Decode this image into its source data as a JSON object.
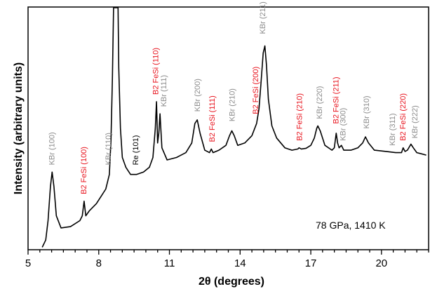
{
  "chart_data": {
    "type": "line",
    "xlabel": "2θ (degrees)",
    "ylabel": "Intensity (arbitrary units)",
    "xlim": [
      5,
      22
    ],
    "ylim": [
      0,
      100
    ],
    "x_ticks": [
      "5",
      "8",
      "11",
      "14",
      "17",
      "20"
    ],
    "annotation": "78 GPa, 1410 K",
    "colors": {
      "line": "#000000",
      "kbr": "#8c8c8c",
      "fesi": "#e8141e",
      "re": "#000000"
    },
    "series": [
      {
        "points": [
          [
            5.6,
            1
          ],
          [
            5.75,
            4
          ],
          [
            5.85,
            12
          ],
          [
            5.95,
            26
          ],
          [
            6.02,
            32
          ],
          [
            6.1,
            26
          ],
          [
            6.2,
            14
          ],
          [
            6.4,
            9
          ],
          [
            6.8,
            9.5
          ],
          [
            7.2,
            12
          ],
          [
            7.3,
            14
          ],
          [
            7.38,
            20
          ],
          [
            7.45,
            14
          ],
          [
            7.6,
            16
          ],
          [
            7.9,
            19
          ],
          [
            8.1,
            22
          ],
          [
            8.3,
            25
          ],
          [
            8.45,
            31
          ],
          [
            8.52,
            45
          ],
          [
            8.58,
            70
          ],
          [
            8.63,
            100
          ],
          [
            8.82,
            100
          ],
          [
            8.85,
            75
          ],
          [
            8.92,
            50
          ],
          [
            9.0,
            38
          ],
          [
            9.15,
            34
          ],
          [
            9.35,
            31
          ],
          [
            9.6,
            31
          ],
          [
            9.9,
            32
          ],
          [
            10.15,
            34
          ],
          [
            10.3,
            38
          ],
          [
            10.4,
            50
          ],
          [
            10.45,
            61
          ],
          [
            10.5,
            44
          ],
          [
            10.55,
            48
          ],
          [
            10.6,
            56
          ],
          [
            10.68,
            42
          ],
          [
            10.9,
            37
          ],
          [
            11.3,
            38
          ],
          [
            11.7,
            40
          ],
          [
            11.95,
            44
          ],
          [
            12.08,
            52
          ],
          [
            12.18,
            53.5
          ],
          [
            12.3,
            48
          ],
          [
            12.5,
            41
          ],
          [
            12.7,
            40
          ],
          [
            12.78,
            41.5
          ],
          [
            12.85,
            40
          ],
          [
            13.1,
            41
          ],
          [
            13.4,
            43
          ],
          [
            13.55,
            47
          ],
          [
            13.65,
            49
          ],
          [
            13.75,
            47
          ],
          [
            13.9,
            43
          ],
          [
            14.2,
            44
          ],
          [
            14.5,
            47
          ],
          [
            14.7,
            52
          ],
          [
            14.8,
            58
          ],
          [
            14.88,
            68
          ],
          [
            14.98,
            81
          ],
          [
            15.05,
            84
          ],
          [
            15.12,
            76
          ],
          [
            15.2,
            62
          ],
          [
            15.35,
            51
          ],
          [
            15.55,
            46
          ],
          [
            15.9,
            42
          ],
          [
            16.2,
            41
          ],
          [
            16.45,
            41.5
          ],
          [
            16.5,
            42
          ],
          [
            16.6,
            41.5
          ],
          [
            16.8,
            41.8
          ],
          [
            17.0,
            43
          ],
          [
            17.15,
            46
          ],
          [
            17.25,
            50
          ],
          [
            17.3,
            51
          ],
          [
            17.4,
            49
          ],
          [
            17.6,
            43
          ],
          [
            17.9,
            41
          ],
          [
            18.0,
            42
          ],
          [
            18.08,
            48
          ],
          [
            18.14,
            44
          ],
          [
            18.2,
            42
          ],
          [
            18.3,
            43
          ],
          [
            18.4,
            41
          ],
          [
            18.7,
            41
          ],
          [
            19.0,
            42
          ],
          [
            19.2,
            44
          ],
          [
            19.32,
            46.5
          ],
          [
            19.45,
            44
          ],
          [
            19.7,
            41
          ],
          [
            20.2,
            40.5
          ],
          [
            20.6,
            40
          ],
          [
            20.85,
            40
          ],
          [
            20.92,
            42
          ],
          [
            21.0,
            40.5
          ],
          [
            21.1,
            41
          ],
          [
            21.25,
            43.5
          ],
          [
            21.35,
            42
          ],
          [
            21.5,
            40
          ],
          [
            21.7,
            39.5
          ],
          [
            21.9,
            39
          ]
        ]
      }
    ],
    "peak_labels": [
      {
        "text": "KBr (100)",
        "x": 6.0,
        "y": 34,
        "kind": "kbr"
      },
      {
        "text": "B2 FeSi (100)",
        "x": 7.35,
        "y": 22,
        "kind": "fesi"
      },
      {
        "text": "KBr (110)",
        "x": 8.4,
        "y": 34,
        "kind": "kbr"
      },
      {
        "text": "Re (101)",
        "x": 9.55,
        "y": 34,
        "kind": "re"
      },
      {
        "text": "B2 FeSi (110)",
        "x": 10.4,
        "y": 63,
        "kind": "fesi"
      },
      {
        "text": "KBr (111)",
        "x": 10.75,
        "y": 58,
        "kind": "kbr"
      },
      {
        "text": "KBr (200)",
        "x": 12.18,
        "y": 56,
        "kind": "kbr"
      },
      {
        "text": "B2 FeSi (111)",
        "x": 12.8,
        "y": 43.5,
        "kind": "fesi"
      },
      {
        "text": "KBr (210)",
        "x": 13.65,
        "y": 52,
        "kind": "kbr"
      },
      {
        "text": "B2 FeSi (200)",
        "x": 14.65,
        "y": 55,
        "kind": "fesi"
      },
      {
        "text": "KBr (211)",
        "x": 14.95,
        "y": 88,
        "kind": "kbr"
      },
      {
        "text": "B2 FeSi (210)",
        "x": 16.5,
        "y": 44,
        "kind": "fesi"
      },
      {
        "text": "KBr (220)",
        "x": 17.35,
        "y": 53,
        "kind": "kbr"
      },
      {
        "text": "B2 FeSi (211)",
        "x": 18.05,
        "y": 51,
        "kind": "fesi"
      },
      {
        "text": "KBr (300)",
        "x": 18.35,
        "y": 44,
        "kind": "kbr"
      },
      {
        "text": "KBr (310)",
        "x": 19.35,
        "y": 49,
        "kind": "kbr"
      },
      {
        "text": "KBr (311)",
        "x": 20.45,
        "y": 42,
        "kind": "kbr"
      },
      {
        "text": "B2 FeSi (220)",
        "x": 20.9,
        "y": 44,
        "kind": "fesi"
      },
      {
        "text": "KBr (222)",
        "x": 21.4,
        "y": 45,
        "kind": "kbr"
      }
    ]
  }
}
